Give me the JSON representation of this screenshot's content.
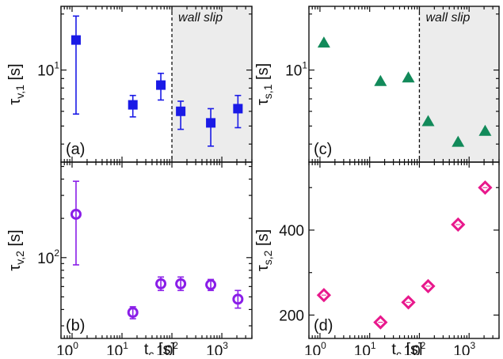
{
  "figure": {
    "xlabel_main": "t",
    "xlabel_sub": "c",
    "xlabel_unit": " [s]",
    "x_ticks": [
      {
        "value": 1,
        "base": "10",
        "exp": "0"
      },
      {
        "value": 10,
        "base": "10",
        "exp": "1"
      },
      {
        "value": 100,
        "base": "10",
        "exp": "2"
      },
      {
        "value": 1000,
        "base": "10",
        "exp": "3"
      }
    ],
    "wall_slip_label": "wall slip",
    "wall_slip_from": 100,
    "shade_color": "#ececec"
  },
  "chart_data": [
    {
      "id": "a",
      "type": "scatter",
      "panel_label": "(a)",
      "ylabel": {
        "main": "τ",
        "sub": "v,1",
        "unit": " [s]"
      },
      "xscale": "log",
      "yscale": "log",
      "xlim": [
        0.6,
        4000
      ],
      "ylim": [
        3.2,
        22
      ],
      "y_ticks": [
        {
          "value": 10,
          "label": "10",
          "exp": "1"
        }
      ],
      "marker": "filled-square",
      "color": "#1a1ae6",
      "shaded_wall_slip": true,
      "points": [
        {
          "x": 1.2,
          "y": 14.5,
          "err_lo": 5.8,
          "err_hi": 19.5
        },
        {
          "x": 16.5,
          "y": 6.5,
          "err_lo": 5.6,
          "err_hi": 7.3
        },
        {
          "x": 60,
          "y": 8.3,
          "err_lo": 6.9,
          "err_hi": 9.6
        },
        {
          "x": 150,
          "y": 6.0,
          "err_lo": 4.8,
          "err_hi": 6.8
        },
        {
          "x": 600,
          "y": 5.2,
          "err_lo": 3.9,
          "err_hi": 6.2
        },
        {
          "x": 2100,
          "y": 6.2,
          "err_lo": 4.9,
          "err_hi": 7.3
        }
      ]
    },
    {
      "id": "b",
      "type": "scatter",
      "panel_label": "(b)",
      "ylabel": {
        "main": "τ",
        "sub": "v,2",
        "unit": " [s]"
      },
      "xscale": "log",
      "yscale": "log",
      "xlim": [
        0.6,
        4000
      ],
      "ylim": [
        24,
        540
      ],
      "y_ticks": [
        {
          "value": 100,
          "label": "10",
          "exp": "2"
        }
      ],
      "marker": "open-circle",
      "color": "#8a1ee8",
      "shaded_wall_slip": false,
      "points": [
        {
          "x": 1.2,
          "y": 215,
          "err_lo": 88,
          "err_hi": 385
        },
        {
          "x": 16.5,
          "y": 38,
          "err_lo": 34,
          "err_hi": 42
        },
        {
          "x": 60,
          "y": 63,
          "err_lo": 56,
          "err_hi": 71
        },
        {
          "x": 150,
          "y": 63,
          "err_lo": 56,
          "err_hi": 71
        },
        {
          "x": 600,
          "y": 62,
          "err_lo": 56,
          "err_hi": 68
        },
        {
          "x": 2100,
          "y": 48,
          "err_lo": 41,
          "err_hi": 56
        }
      ]
    },
    {
      "id": "c",
      "type": "scatter",
      "panel_label": "(c)",
      "ylabel": {
        "main": "τ",
        "sub": "s,1",
        "unit": " [s]"
      },
      "xscale": "log",
      "yscale": "log",
      "xlim": [
        0.6,
        4000
      ],
      "ylim": [
        3.2,
        22
      ],
      "y_ticks": [
        {
          "value": 10,
          "label": "10",
          "exp": "1"
        }
      ],
      "marker": "filled-triangle",
      "color": "#128a5a",
      "shaded_wall_slip": true,
      "points": [
        {
          "x": 1.2,
          "y": 14.0
        },
        {
          "x": 16.5,
          "y": 8.7
        },
        {
          "x": 60,
          "y": 9.1
        },
        {
          "x": 150,
          "y": 5.3
        },
        {
          "x": 600,
          "y": 4.1
        },
        {
          "x": 2100,
          "y": 4.7
        }
      ]
    },
    {
      "id": "d",
      "type": "scatter",
      "panel_label": "(d)",
      "ylabel": {
        "main": "τ",
        "sub": "s,2",
        "unit": " [s]"
      },
      "xscale": "log",
      "yscale": "linear",
      "xlim": [
        0.6,
        4000
      ],
      "ylim": [
        145,
        560
      ],
      "y_ticks": [
        {
          "value": 200,
          "label": "200",
          "exp": ""
        },
        {
          "value": 400,
          "label": "400",
          "exp": ""
        }
      ],
      "marker": "open-diamond",
      "color": "#e8188c",
      "shaded_wall_slip": false,
      "points": [
        {
          "x": 1.2,
          "y": 247
        },
        {
          "x": 16.5,
          "y": 183
        },
        {
          "x": 60,
          "y": 230
        },
        {
          "x": 150,
          "y": 268
        },
        {
          "x": 600,
          "y": 413
        },
        {
          "x": 2100,
          "y": 500
        }
      ]
    }
  ]
}
